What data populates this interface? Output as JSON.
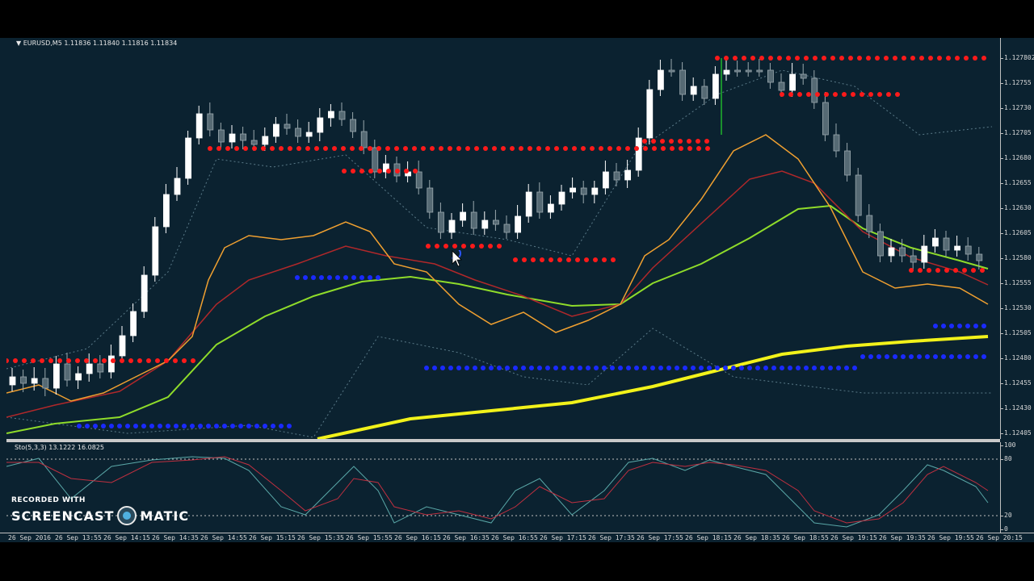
{
  "symbol_header": "▼ EURUSD,M5  1.11836 1.11840 1.11816 1.11834",
  "price_axis": {
    "top_label": "1.127802",
    "ticks": [
      "1.12755",
      "1.12730",
      "1.12705",
      "1.12680",
      "1.12655",
      "1.12630",
      "1.12605",
      "1.12580",
      "1.12555",
      "1.12530",
      "1.12505",
      "1.12480",
      "1.12455",
      "1.12430",
      "1.12405"
    ]
  },
  "oscillator": {
    "header": "Sto(5,3,3) 13.1222 16.0825",
    "levels": [
      "100",
      "80",
      "20",
      "0"
    ]
  },
  "time_axis": [
    "26 Sep 2016",
    "26 Sep 13:55",
    "26 Sep 14:15",
    "26 Sep 14:35",
    "26 Sep 14:55",
    "26 Sep 15:15",
    "26 Sep 15:35",
    "26 Sep 15:55",
    "26 Sep 16:15",
    "26 Sep 16:35",
    "26 Sep 16:55",
    "26 Sep 17:15",
    "26 Sep 17:35",
    "26 Sep 17:55",
    "26 Sep 18:15",
    "26 Sep 18:35",
    "26 Sep 18:55",
    "26 Sep 19:15",
    "26 Sep 19:35",
    "26 Sep 19:55",
    "26 Sep 20:15"
  ],
  "watermark": {
    "line1": "RECORDED WITH",
    "line2a": "SCREENCAST",
    "line2b": "MATIC"
  },
  "colors": {
    "background": "#0b2230",
    "bull": "#ffffff",
    "bear": "#566a74",
    "resistance": "#ff1a1a",
    "support": "#1a2aff",
    "ma_fast": "#f0a030",
    "ma_mid": "#b0282a",
    "ma_slow": "#8fdc2a",
    "ma_trend": "#f2f21a",
    "sto_main": "#5aa8a8",
    "sto_signal": "#c03040"
  }
}
